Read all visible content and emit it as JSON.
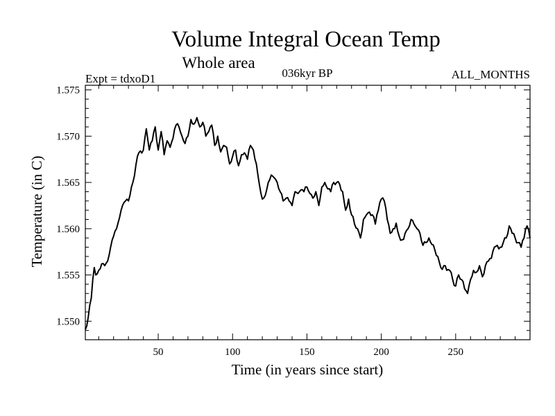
{
  "chart_data": {
    "type": "line",
    "title": "Volume Integral Ocean Temp",
    "subtitle": "Whole area",
    "left_label": "Expt = tdxoD1",
    "center_label": "036kyr BP",
    "right_label": "ALL_MONTHS",
    "xlabel": "Time (in years since start)",
    "ylabel": "Temperature (in C)",
    "xlim": [
      1,
      300
    ],
    "ylim": [
      1.548,
      1.5755
    ],
    "x_ticks": [
      50,
      100,
      150,
      200,
      250
    ],
    "x_tick_labels": [
      "50",
      "100",
      "150",
      "200",
      "250"
    ],
    "y_ticks": [
      1.55,
      1.555,
      1.56,
      1.565,
      1.57,
      1.575
    ],
    "y_tick_labels": [
      "1.550",
      "1.555",
      "1.560",
      "1.565",
      "1.570",
      "1.575"
    ],
    "series": [
      {
        "name": "Volume Integral Ocean Temp",
        "color": "#000000",
        "anchors": [
          [
            1,
            1.5491
          ],
          [
            3,
            1.5505
          ],
          [
            5,
            1.5525
          ],
          [
            6,
            1.5545
          ],
          [
            7,
            1.5558
          ],
          [
            8,
            1.555
          ],
          [
            10,
            1.5555
          ],
          [
            12,
            1.5562
          ],
          [
            14,
            1.556
          ],
          [
            16,
            1.5565
          ],
          [
            18,
            1.558
          ],
          [
            20,
            1.5592
          ],
          [
            22,
            1.56
          ],
          [
            24,
            1.5612
          ],
          [
            26,
            1.5625
          ],
          [
            28,
            1.563
          ],
          [
            30,
            1.563
          ],
          [
            32,
            1.5645
          ],
          [
            34,
            1.5657
          ],
          [
            36,
            1.5678
          ],
          [
            38,
            1.5684
          ],
          [
            40,
            1.5685
          ],
          [
            42,
            1.5708
          ],
          [
            44,
            1.5685
          ],
          [
            46,
            1.5695
          ],
          [
            48,
            1.571
          ],
          [
            50,
            1.5685
          ],
          [
            52,
            1.5705
          ],
          [
            54,
            1.568
          ],
          [
            56,
            1.5695
          ],
          [
            58,
            1.5688
          ],
          [
            60,
            1.5698
          ],
          [
            62,
            1.5712
          ],
          [
            64,
            1.571
          ],
          [
            66,
            1.57
          ],
          [
            68,
            1.5692
          ],
          [
            70,
            1.57
          ],
          [
            72,
            1.5718
          ],
          [
            74,
            1.5713
          ],
          [
            76,
            1.572
          ],
          [
            78,
            1.571
          ],
          [
            80,
            1.5715
          ],
          [
            82,
            1.57
          ],
          [
            84,
            1.5705
          ],
          [
            86,
            1.5712
          ],
          [
            88,
            1.569
          ],
          [
            90,
            1.57
          ],
          [
            92,
            1.5683
          ],
          [
            94,
            1.569
          ],
          [
            96,
            1.5688
          ],
          [
            98,
            1.567
          ],
          [
            100,
            1.5678
          ],
          [
            102,
            1.5685
          ],
          [
            104,
            1.5668
          ],
          [
            106,
            1.568
          ],
          [
            108,
            1.5682
          ],
          [
            110,
            1.5675
          ],
          [
            112,
            1.569
          ],
          [
            114,
            1.5685
          ],
          [
            116,
            1.567
          ],
          [
            118,
            1.5648
          ],
          [
            120,
            1.5632
          ],
          [
            122,
            1.5636
          ],
          [
            124,
            1.565
          ],
          [
            126,
            1.5658
          ],
          [
            128,
            1.5655
          ],
          [
            130,
            1.565
          ],
          [
            132,
            1.564
          ],
          [
            134,
            1.563
          ],
          [
            136,
            1.5633
          ],
          [
            138,
            1.563
          ],
          [
            140,
            1.5625
          ],
          [
            142,
            1.564
          ],
          [
            144,
            1.5638
          ],
          [
            146,
            1.5642
          ],
          [
            148,
            1.564
          ],
          [
            150,
            1.5645
          ],
          [
            152,
            1.5638
          ],
          [
            154,
            1.5633
          ],
          [
            156,
            1.564
          ],
          [
            158,
            1.5625
          ],
          [
            160,
            1.5645
          ],
          [
            162,
            1.565
          ],
          [
            164,
            1.5643
          ],
          [
            166,
            1.564
          ],
          [
            168,
            1.565
          ],
          [
            170,
            1.565
          ],
          [
            172,
            1.5648
          ],
          [
            174,
            1.564
          ],
          [
            176,
            1.562
          ],
          [
            178,
            1.5632
          ],
          [
            180,
            1.5615
          ],
          [
            182,
            1.5605
          ],
          [
            184,
            1.56
          ],
          [
            186,
            1.559
          ],
          [
            188,
            1.561
          ],
          [
            190,
            1.5615
          ],
          [
            192,
            1.5618
          ],
          [
            194,
            1.5615
          ],
          [
            196,
            1.5605
          ],
          [
            198,
            1.562
          ],
          [
            200,
            1.5632
          ],
          [
            202,
            1.563
          ],
          [
            204,
            1.561
          ],
          [
            206,
            1.5595
          ],
          [
            208,
            1.56
          ],
          [
            210,
            1.5606
          ],
          [
            212,
            1.5592
          ],
          [
            214,
            1.5588
          ],
          [
            216,
            1.5595
          ],
          [
            218,
            1.56
          ],
          [
            220,
            1.561
          ],
          [
            222,
            1.5605
          ],
          [
            224,
            1.56
          ],
          [
            226,
            1.5595
          ],
          [
            228,
            1.5582
          ],
          [
            230,
            1.5585
          ],
          [
            232,
            1.559
          ],
          [
            234,
            1.5583
          ],
          [
            236,
            1.5577
          ],
          [
            238,
            1.557
          ],
          [
            240,
            1.5558
          ],
          [
            242,
            1.556
          ],
          [
            244,
            1.5555
          ],
          [
            246,
            1.5555
          ],
          [
            248,
            1.5545
          ],
          [
            250,
            1.5538
          ],
          [
            252,
            1.555
          ],
          [
            254,
            1.5545
          ],
          [
            256,
            1.5535
          ],
          [
            258,
            1.553
          ],
          [
            260,
            1.5545
          ],
          [
            262,
            1.5555
          ],
          [
            264,
            1.5553
          ],
          [
            266,
            1.556
          ],
          [
            268,
            1.5548
          ],
          [
            270,
            1.556
          ],
          [
            272,
            1.5565
          ],
          [
            274,
            1.5568
          ],
          [
            276,
            1.558
          ],
          [
            278,
            1.5582
          ],
          [
            280,
            1.558
          ],
          [
            282,
            1.5585
          ],
          [
            284,
            1.559
          ],
          [
            286,
            1.5603
          ],
          [
            288,
            1.5595
          ],
          [
            290,
            1.559
          ],
          [
            292,
            1.5585
          ],
          [
            294,
            1.558
          ],
          [
            296,
            1.559
          ],
          [
            298,
            1.5603
          ],
          [
            300,
            1.559
          ]
        ]
      }
    ]
  }
}
